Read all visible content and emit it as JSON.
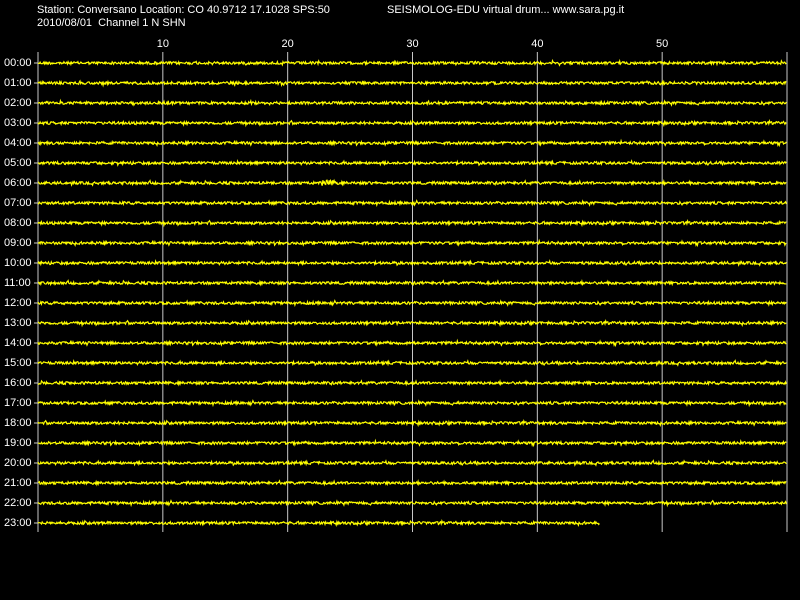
{
  "header": {
    "station": "Station: Conversano Location: CO 40.9712 17.1028 SPS:50",
    "source": "SEISMOLOG-EDU virtual drum... www.sara.pg.it",
    "date_channel": "2010/08/01  Channel 1 N SHN"
  },
  "chart_data": {
    "type": "drum",
    "rows": [
      "00:00",
      "01:00",
      "02:00",
      "03:00",
      "04:00",
      "05:00",
      "06:00",
      "07:00",
      "08:00",
      "09:00",
      "10:00",
      "11:00",
      "12:00",
      "13:00",
      "14:00",
      "15:00",
      "16:00",
      "17:00",
      "18:00",
      "19:00",
      "20:00",
      "21:00",
      "22:00",
      "23:00"
    ],
    "trace_end": [
      60,
      60,
      60,
      60,
      60,
      60,
      60,
      60,
      60,
      60,
      60,
      60,
      60,
      60,
      60,
      60,
      60,
      60,
      60,
      60,
      60,
      60,
      60,
      45
    ],
    "xlim": [
      0,
      60
    ],
    "xticks": [
      10,
      20,
      30,
      40,
      50
    ],
    "color": "#ffff00",
    "grid": true
  }
}
